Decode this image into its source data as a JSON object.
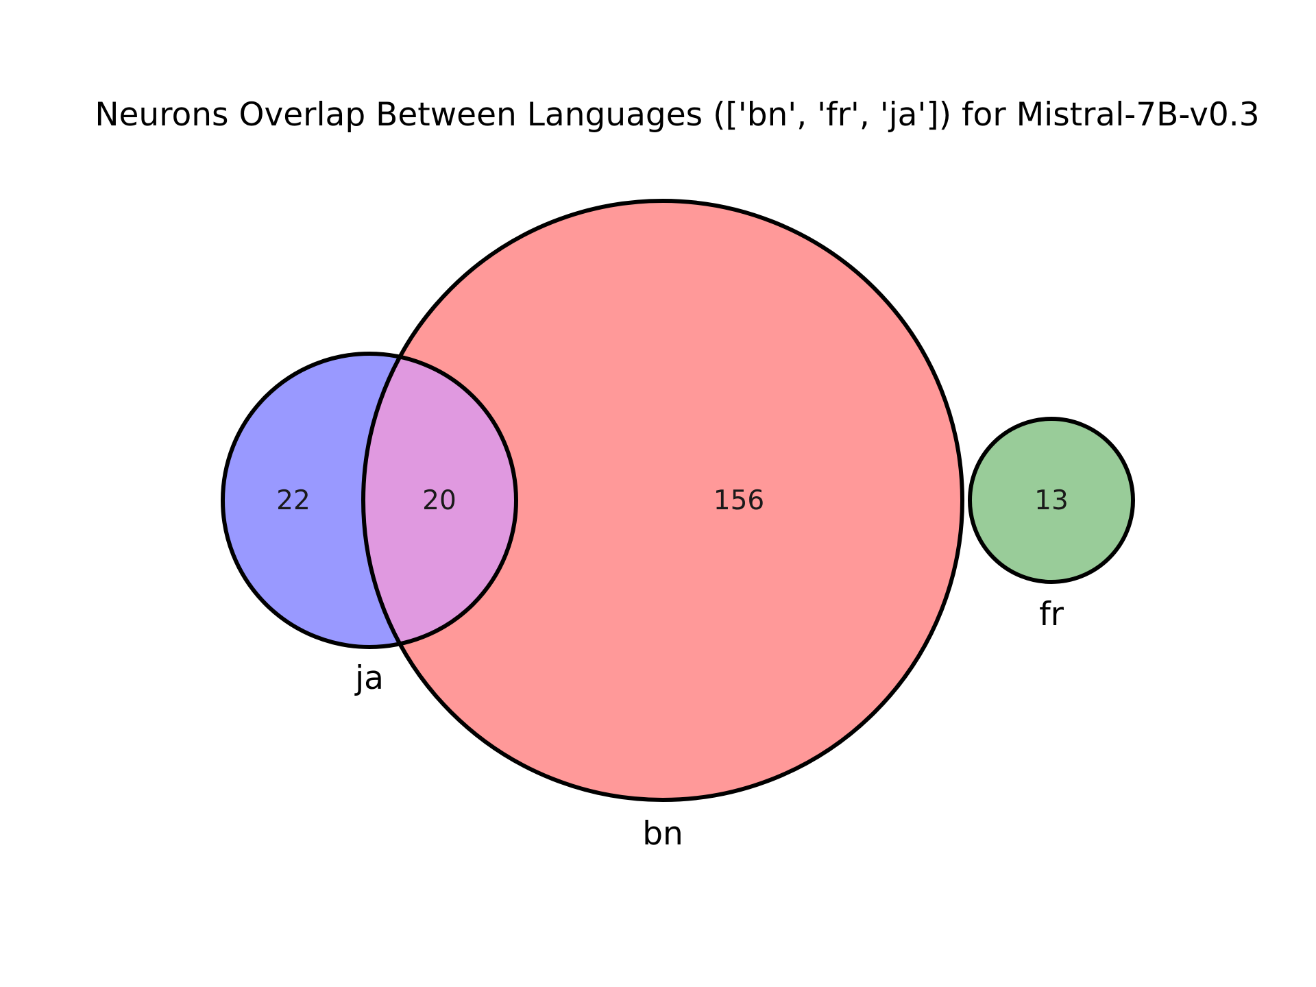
{
  "title": "Neurons Overlap Between Languages (['bn', 'fr', 'ja']) for Mistral-7B-v0.3",
  "sets": {
    "bn": {
      "label": "bn",
      "color": "#ff9999"
    },
    "fr": {
      "label": "fr",
      "color": "#99cc99"
    },
    "ja": {
      "label": "ja",
      "color": "#9999ff"
    }
  },
  "overlap_color": "#e099e0",
  "regions": {
    "ja_only": "22",
    "bn_ja": "20",
    "bn_only": "156",
    "fr_only": "13"
  }
}
